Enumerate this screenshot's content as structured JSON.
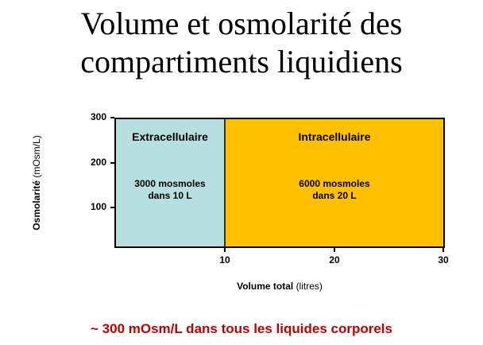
{
  "title": {
    "line1": "Volume et osmolarité des",
    "line2": "compartiments liquidiens"
  },
  "diagram": {
    "y_axis": {
      "label_bold": "Osmolarité",
      "label_unit": "(mOsm/L)",
      "ticks": [
        "100",
        "200",
        "300"
      ],
      "range": [
        0,
        300
      ]
    },
    "x_axis": {
      "label_bold": "Volume total",
      "label_unit": "(litres)",
      "ticks": [
        "10",
        "20",
        "30"
      ],
      "range": [
        0,
        30
      ]
    },
    "compartments": [
      {
        "name": "Extracellulaire",
        "line1": "3000 mosmoles",
        "line2": "dans 10 L",
        "volume_start": 0,
        "volume_end": 10,
        "osmolarity": 300,
        "color": "#b8dfe0"
      },
      {
        "name": "Intracellulaire",
        "line1": "6000 mosmoles",
        "line2": "dans 20 L",
        "volume_start": 10,
        "volume_end": 30,
        "osmolarity": 300,
        "color": "#ffc000"
      }
    ]
  },
  "footer": {
    "text": "~ 300 mOsm/L dans tous les liquides corporels",
    "color": "#c00000"
  }
}
